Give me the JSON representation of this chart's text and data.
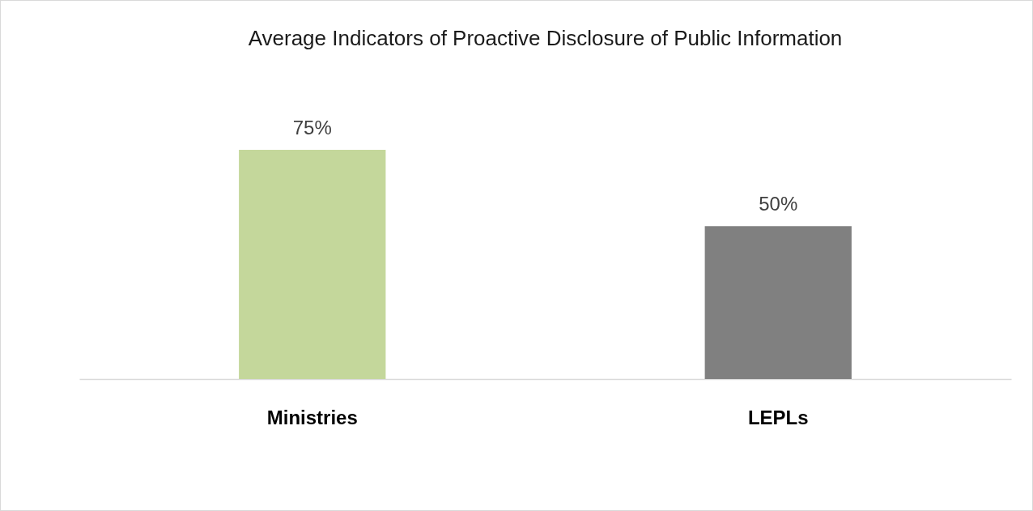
{
  "chart_data": {
    "type": "bar",
    "title": "Average Indicators of Proactive Disclosure of Public Information",
    "categories": [
      "Ministries",
      "LEPLs"
    ],
    "values": [
      75,
      50
    ],
    "colors": [
      "#c4d79b",
      "#808080"
    ],
    "value_labels": [
      "75%",
      "50%"
    ]
  }
}
